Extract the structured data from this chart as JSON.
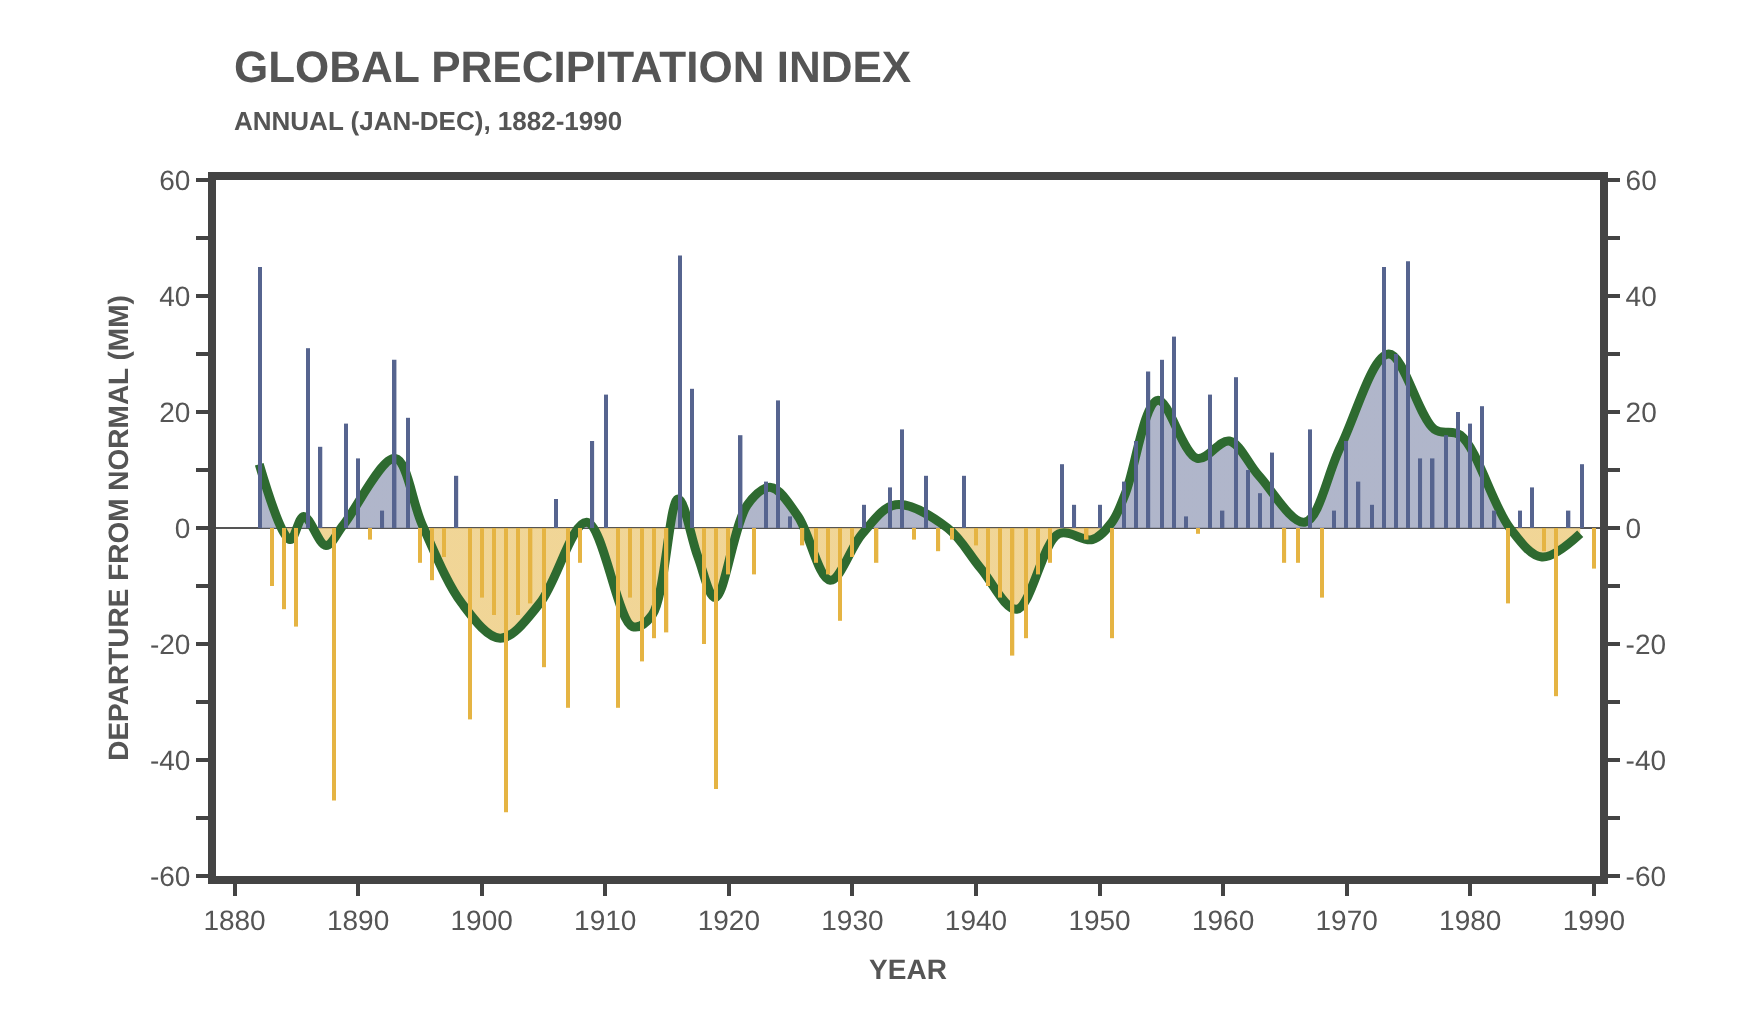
{
  "chart_data": {
    "type": "bar",
    "title": "GLOBAL PRECIPITATION INDEX",
    "subtitle": "ANNUAL (JAN-DEC), 1882-1990",
    "xlabel": "YEAR",
    "ylabel": "DEPARTURE FROM NORMAL (MM)",
    "xlim": [
      1878.5,
      1990.5
    ],
    "xticks": [
      1880,
      1890,
      1900,
      1910,
      1920,
      1930,
      1940,
      1950,
      1960,
      1970,
      1980,
      1990
    ],
    "ylim": [
      -60,
      60
    ],
    "yticks": [
      -60,
      -40,
      -20,
      0,
      20,
      40,
      60
    ],
    "y2lim": [
      -60,
      60
    ],
    "y2ticks": [
      -60,
      -40,
      -20,
      0,
      20,
      40,
      60
    ],
    "grid": false,
    "ref_lines": [
      {
        "axis": "y",
        "value": 0,
        "color": "#555555"
      }
    ],
    "series": [
      {
        "type": "area",
        "color": "#2e6a30",
        "x": [
          1882,
          1884.5,
          1885.6,
          1887.4,
          1888.8,
          1893,
          1895.2,
          1898.4,
          1901.5,
          1904.7,
          1908.5,
          1912.2,
          1913.8,
          1915.9,
          1917.5,
          1918.9,
          1921.5,
          1923.4,
          1925.6,
          1928.2,
          1930.8,
          1933.5,
          1937.7,
          1940.4,
          1943.3,
          1946.7,
          1949.4,
          1951,
          1952.1,
          1954.7,
          1957.9,
          1960.5,
          1962.9,
          1966.6,
          1969.5,
          1973.4,
          1977.1,
          1979.2,
          1983.2,
          1985.8,
          1988.9
        ],
        "values": [
          11,
          -2,
          2,
          -3,
          0.5,
          12,
          0.5,
          -13,
          -19,
          -13,
          1,
          -17,
          -15,
          5,
          -5,
          -12,
          4,
          7,
          2,
          -9,
          -1,
          4,
          0,
          -7,
          -14,
          -1,
          -2,
          1,
          6,
          22,
          12,
          15,
          9,
          1,
          14,
          30,
          17,
          16,
          0,
          -5,
          -1
        ]
      },
      {
        "x": [
          1882,
          1883,
          1884,
          1885,
          1886,
          1887,
          1888,
          1889,
          1890,
          1891,
          1892,
          1893,
          1894,
          1895,
          1896,
          1897,
          1898,
          1899,
          1900,
          1901,
          1902,
          1903,
          1904,
          1905,
          1906,
          1907,
          1908,
          1909,
          1910,
          1911,
          1912,
          1913,
          1914,
          1915,
          1916,
          1917,
          1918,
          1919,
          1920,
          1921,
          1922,
          1923,
          1924,
          1925,
          1926,
          1927,
          1928,
          1929,
          1930,
          1931,
          1932,
          1933,
          1934,
          1935,
          1936,
          1937,
          1938,
          1939,
          1940,
          1941,
          1942,
          1943,
          1944,
          1945,
          1946,
          1947,
          1948,
          1949,
          1950,
          1951,
          1952,
          1953,
          1954,
          1955,
          1956,
          1957,
          1958,
          1959,
          1960,
          1961,
          1962,
          1963,
          1964,
          1965,
          1966,
          1967,
          1968,
          1969,
          1970,
          1971,
          1972,
          1973,
          1974,
          1975,
          1976,
          1977,
          1978,
          1979,
          1980,
          1981,
          1982,
          1983,
          1984,
          1985,
          1986,
          1987,
          1988,
          1989,
          1990
        ],
        "values": [
          45,
          -10,
          -14,
          -17,
          31,
          14,
          -47,
          18,
          12,
          -2,
          3,
          29,
          19,
          -6,
          -9,
          -5,
          9,
          -33,
          -12,
          -15,
          -49,
          -15,
          -13,
          -24,
          5,
          -31,
          -6,
          15,
          23,
          -31,
          -12,
          -23,
          -19,
          -18,
          47,
          24,
          -20,
          -45,
          -8,
          16,
          -8,
          8,
          22,
          2,
          -3,
          -6,
          -8,
          -16,
          -5,
          4,
          -6,
          7,
          17,
          -2,
          9,
          -4,
          -2,
          9,
          -3,
          -10,
          -12,
          -22,
          -19,
          -8,
          -6,
          11,
          4,
          -2,
          4,
          -19,
          8,
          15,
          27,
          29,
          33,
          2,
          -1,
          23,
          3,
          26,
          10,
          6,
          13,
          -6,
          -6,
          17,
          -12,
          3,
          15,
          8,
          4,
          45,
          30,
          46,
          12,
          12,
          16,
          20,
          18,
          21,
          3,
          -13,
          3,
          7,
          -4,
          -29,
          3,
          11,
          -7
        ],
        "colors": [
          "#56648f",
          "#e5b443",
          "#e5b443",
          "#e5b443",
          "#56648f",
          "#56648f",
          "#e5b443",
          "#56648f",
          "#56648f",
          "#e5b443",
          "#56648f",
          "#56648f",
          "#56648f",
          "#e5b443",
          "#e5b443",
          "#e5b443",
          "#56648f",
          "#e5b443",
          "#e5b443",
          "#e5b443",
          "#e5b443",
          "#e5b443",
          "#e5b443",
          "#e5b443",
          "#56648f",
          "#e5b443",
          "#e5b443",
          "#56648f",
          "#56648f",
          "#e5b443",
          "#e5b443",
          "#e5b443",
          "#e5b443",
          "#e5b443",
          "#56648f",
          "#56648f",
          "#e5b443",
          "#e5b443",
          "#e5b443",
          "#56648f",
          "#e5b443",
          "#56648f",
          "#56648f",
          "#56648f",
          "#e5b443",
          "#e5b443",
          "#e5b443",
          "#e5b443",
          "#e5b443",
          "#56648f",
          "#e5b443",
          "#56648f",
          "#56648f",
          "#e5b443",
          "#56648f",
          "#e5b443",
          "#e5b443",
          "#56648f",
          "#e5b443",
          "#e5b443",
          "#e5b443",
          "#e5b443",
          "#e5b443",
          "#e5b443",
          "#e5b443",
          "#56648f",
          "#56648f",
          "#e5b443",
          "#56648f",
          "#e5b443",
          "#56648f",
          "#56648f",
          "#56648f",
          "#56648f",
          "#56648f",
          "#56648f",
          "#e5b443",
          "#56648f",
          "#56648f",
          "#56648f",
          "#56648f",
          "#56648f",
          "#56648f",
          "#e5b443",
          "#e5b443",
          "#56648f",
          "#e5b443",
          "#56648f",
          "#56648f",
          "#56648f",
          "#56648f",
          "#56648f",
          "#56648f",
          "#56648f",
          "#56648f",
          "#56648f",
          "#56648f",
          "#56648f",
          "#56648f",
          "#56648f",
          "#56648f",
          "#e5b443",
          "#56648f",
          "#56648f",
          "#e5b443",
          "#e5b443",
          "#56648f",
          "#56648f",
          "#e5b443"
        ]
      }
    ]
  }
}
